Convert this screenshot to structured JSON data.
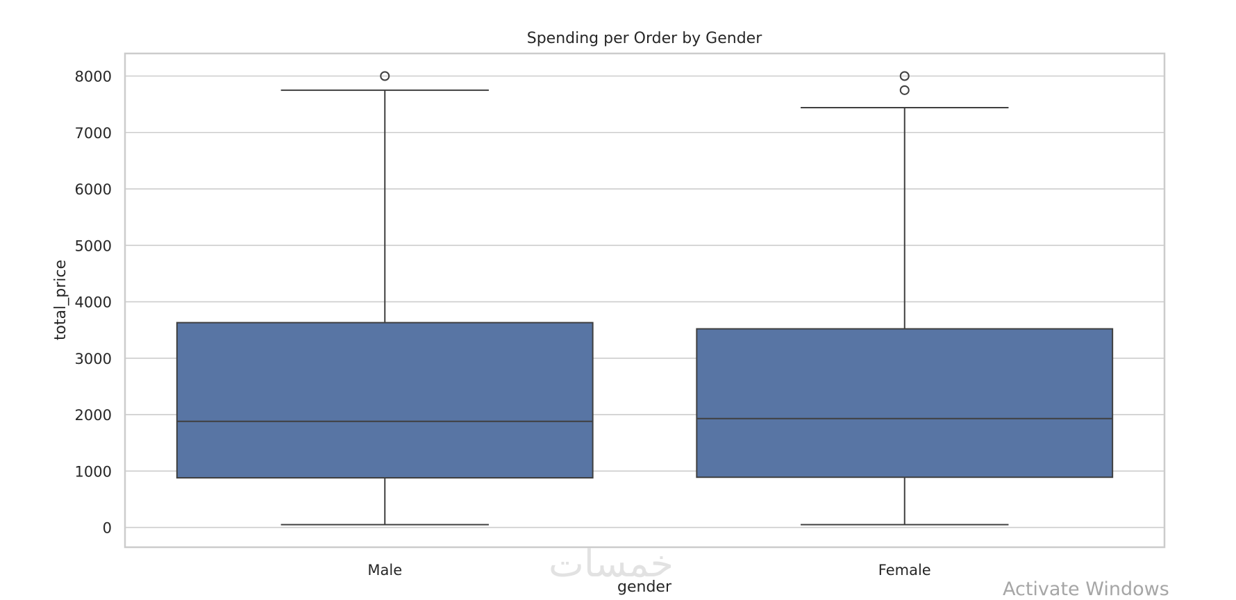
{
  "chart_data": {
    "type": "box",
    "title": "Spending per Order by Gender",
    "xlabel": "gender",
    "ylabel": "total_price",
    "categories": [
      "Male",
      "Female"
    ],
    "ylim": [
      -350,
      8400
    ],
    "yticks": [
      0,
      1000,
      2000,
      3000,
      4000,
      5000,
      6000,
      7000,
      8000
    ],
    "grid": true,
    "box_color": "#5875a4",
    "boxes": [
      {
        "category": "Male",
        "whisker_low": 50,
        "q1": 880,
        "median": 1880,
        "q3": 3630,
        "whisker_high": 7750,
        "outliers": [
          8000
        ]
      },
      {
        "category": "Female",
        "whisker_low": 50,
        "q1": 890,
        "median": 1930,
        "q3": 3520,
        "whisker_high": 7440,
        "outliers": [
          8000,
          7750
        ]
      }
    ]
  },
  "watermarks": {
    "arabic": "خمسات",
    "windows": "Activate Windows"
  }
}
